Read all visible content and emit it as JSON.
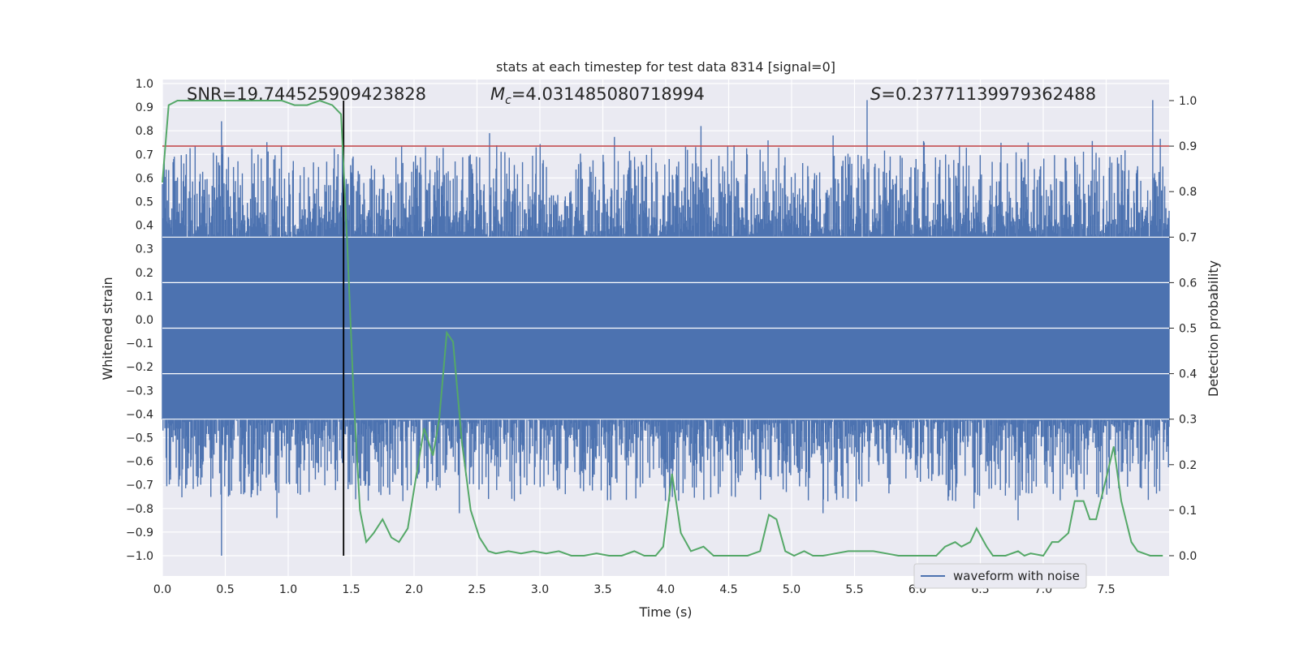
{
  "chart_data": {
    "type": "line",
    "title": "stats at each timestep for test data 8314 [signal=0]",
    "xlabel": "Time (s)",
    "ylabel_left": "Whitened strain",
    "ylabel_right": "Detection probability",
    "xlim": [
      0.0,
      8.0
    ],
    "ylim_left": [
      -1.0,
      1.0
    ],
    "ylim_right": [
      0.0,
      1.0
    ],
    "xticks": [
      0.0,
      0.5,
      1.0,
      1.5,
      2.0,
      2.5,
      3.0,
      3.5,
      4.0,
      4.5,
      5.0,
      5.5,
      6.0,
      6.5,
      7.0,
      7.5
    ],
    "xtick_labels": [
      "0.0",
      "0.5",
      "1.0",
      "1.5",
      "2.0",
      "2.5",
      "3.0",
      "3.5",
      "4.0",
      "4.5",
      "5.0",
      "5.5",
      "6.0",
      "6.5",
      "7.0",
      "7.5"
    ],
    "yticks_left": [
      1.0,
      0.9,
      0.8,
      0.7,
      0.6,
      0.5,
      0.4,
      0.3,
      0.2,
      0.1,
      0.0,
      -0.1,
      -0.2,
      -0.3,
      -0.4,
      -0.5,
      -0.6,
      -0.7,
      -0.8,
      -0.9,
      -1.0
    ],
    "ytick_labels_left": [
      "1.0",
      "0.9",
      "0.8",
      "0.7",
      "0.6",
      "0.5",
      "0.4",
      "0.3",
      "0.2",
      "0.1",
      "0.0",
      "−0.1",
      "−0.2",
      "−0.3",
      "−0.4",
      "−0.5",
      "−0.6",
      "−0.7",
      "−0.8",
      "−0.9",
      "−1.0"
    ],
    "yticks_right": [
      1.0,
      0.9,
      0.8,
      0.7,
      0.6,
      0.5,
      0.4,
      0.3,
      0.2,
      0.1,
      0.0
    ],
    "ytick_labels_right": [
      "1.0",
      "0.9",
      "0.8",
      "0.7",
      "0.6",
      "0.5",
      "0.4",
      "0.3",
      "0.2",
      "0.1",
      "0.0"
    ],
    "annotations": {
      "snr": "SNR=19.744525909423828",
      "mc_symbol": "M",
      "mc_sub": "c",
      "mc_value": "=4.031485080718994",
      "s_symbol": "S",
      "s_value": "=0.23771139979362488"
    },
    "threshold_right": 0.9,
    "marker_time": 1.44,
    "legend": {
      "entries": [
        "waveform with noise"
      ],
      "location": "lower right"
    },
    "series": [
      {
        "name": "waveform with noise",
        "color": "#4c72b0",
        "style": "noise",
        "samples": 1600,
        "envelope_core": [
          -0.42,
          0.35
        ],
        "peaks_top": [
          {
            "t": 0.47,
            "v": 0.84
          },
          {
            "t": 1.43,
            "v": 0.75
          },
          {
            "t": 2.6,
            "v": 0.79
          },
          {
            "t": 2.97,
            "v": 0.73
          },
          {
            "t": 4.28,
            "v": 0.82
          },
          {
            "t": 4.75,
            "v": 0.72
          },
          {
            "t": 5.33,
            "v": 0.78
          },
          {
            "t": 5.6,
            "v": 0.93
          },
          {
            "t": 6.88,
            "v": 0.75
          },
          {
            "t": 7.87,
            "v": 0.93
          }
        ],
        "peaks_bottom": [
          {
            "t": 0.47,
            "v": -1.0
          },
          {
            "t": 0.91,
            "v": -0.84
          },
          {
            "t": 2.36,
            "v": -0.82
          },
          {
            "t": 4.03,
            "v": -0.77
          },
          {
            "t": 5.25,
            "v": -0.82
          },
          {
            "t": 6.45,
            "v": -0.8
          },
          {
            "t": 6.8,
            "v": -0.85
          }
        ]
      },
      {
        "name": "detection probability",
        "color": "#55a868",
        "axis": "right",
        "x": [
          0.0,
          0.05,
          0.12,
          0.2,
          0.4,
          0.6,
          0.8,
          0.95,
          1.05,
          1.15,
          1.25,
          1.35,
          1.42,
          1.47,
          1.52,
          1.57,
          1.62,
          1.68,
          1.75,
          1.82,
          1.88,
          1.95,
          2.02,
          2.08,
          2.15,
          2.2,
          2.26,
          2.31,
          2.38,
          2.45,
          2.52,
          2.59,
          2.65,
          2.75,
          2.85,
          2.95,
          3.05,
          3.15,
          3.25,
          3.35,
          3.45,
          3.55,
          3.65,
          3.75,
          3.83,
          3.92,
          3.98,
          4.05,
          4.12,
          4.2,
          4.3,
          4.38,
          4.45,
          4.55,
          4.65,
          4.75,
          4.82,
          4.88,
          4.95,
          5.02,
          5.1,
          5.17,
          5.25,
          5.35,
          5.45,
          5.55,
          5.65,
          5.75,
          5.85,
          5.95,
          6.05,
          6.15,
          6.22,
          6.3,
          6.35,
          6.42,
          6.47,
          6.55,
          6.6,
          6.7,
          6.8,
          6.85,
          6.9,
          7.0,
          7.07,
          7.12,
          7.2,
          7.25,
          7.32,
          7.37,
          7.42,
          7.5,
          7.56,
          7.62,
          7.7,
          7.75,
          7.85,
          7.95
        ],
        "y": [
          0.82,
          0.99,
          1.0,
          1.0,
          1.0,
          1.0,
          1.0,
          1.0,
          0.99,
          0.99,
          1.0,
          0.99,
          0.97,
          0.68,
          0.35,
          0.1,
          0.03,
          0.05,
          0.08,
          0.04,
          0.03,
          0.06,
          0.18,
          0.28,
          0.22,
          0.3,
          0.49,
          0.47,
          0.25,
          0.1,
          0.04,
          0.01,
          0.005,
          0.01,
          0.005,
          0.01,
          0.005,
          0.01,
          0.0,
          0.0,
          0.005,
          0.0,
          0.0,
          0.01,
          0.0,
          0.0,
          0.02,
          0.18,
          0.05,
          0.01,
          0.02,
          0.0,
          0.0,
          0.0,
          0.0,
          0.01,
          0.09,
          0.08,
          0.01,
          0.0,
          0.01,
          0.0,
          0.0,
          0.005,
          0.01,
          0.01,
          0.01,
          0.005,
          0.0,
          0.0,
          0.0,
          0.0,
          0.02,
          0.03,
          0.02,
          0.03,
          0.06,
          0.02,
          0.0,
          0.0,
          0.01,
          0.0,
          0.005,
          0.0,
          0.03,
          0.03,
          0.05,
          0.12,
          0.12,
          0.08,
          0.08,
          0.17,
          0.24,
          0.12,
          0.03,
          0.01,
          0.0,
          0.0
        ]
      }
    ]
  }
}
